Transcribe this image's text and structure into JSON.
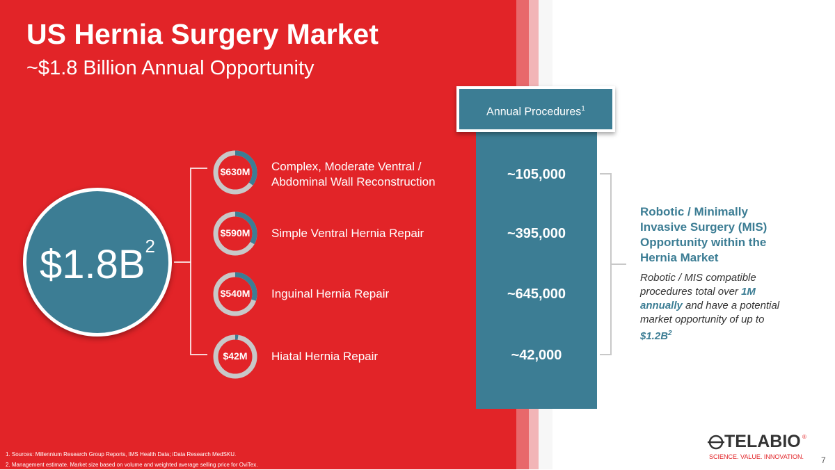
{
  "slide": {
    "title": "US Hernia Surgery Market",
    "subtitle": "~$1.8 Billion Annual Opportunity",
    "page_number": "7"
  },
  "total": {
    "value": "$1.8B",
    "footnote": "2"
  },
  "segments": [
    {
      "value_label": "$630M",
      "name": "Complex, Moderate Ventral / Abdominal Wall Reconstruction",
      "procedures": "~105,000",
      "share": 0.35
    },
    {
      "value_label": "$590M",
      "name": "Simple Ventral Hernia Repair",
      "procedures": "~395,000",
      "share": 0.33
    },
    {
      "value_label": "$540M",
      "name": "Inguinal Hernia Repair",
      "procedures": "~645,000",
      "share": 0.3
    },
    {
      "value_label": "$42M",
      "name": "Hiatal Hernia Repair",
      "procedures": "~42,000",
      "share": 0.023
    }
  ],
  "procedures_header": {
    "label": "Annual Procedures",
    "footnote": "1"
  },
  "opportunity": {
    "heading": "Robotic / Minimally Invasive Surgery (MIS) Opportunity within the Hernia Market",
    "body_prefix": "Robotic / MIS compatible procedures total over ",
    "body_highlight1": "1M annually",
    "body_middle": " and have a potential market opportunity of up to ",
    "body_highlight2": "$1.2B",
    "body_footnote": "2"
  },
  "footnotes": [
    "1. Sources: Millennium Research Group Reports, IMS Health Data; iData Research MedSKU.",
    "2. Management estimate. Market size based on volume and weighted average selling price for OviTex."
  ],
  "logo": {
    "name": "TELABIO",
    "tagline": "SCIENCE. VALUE. INNOVATION.",
    "registered": "®"
  },
  "colors": {
    "red": "#e22428",
    "teal": "#3c7d94",
    "donut_track": "#c8c8c8"
  }
}
